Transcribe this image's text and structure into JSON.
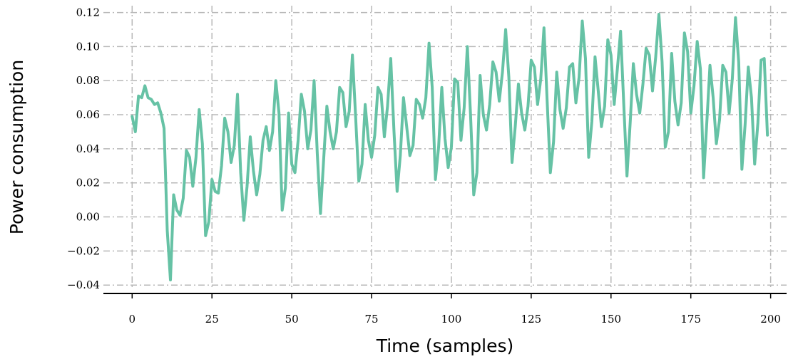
{
  "chart_data": {
    "type": "line",
    "xlabel": "Time (samples)",
    "ylabel": "Power consumption",
    "xlim": [
      -9,
      205
    ],
    "ylim": [
      -0.042,
      0.124
    ],
    "grid": true,
    "line_color": "#66c2a5",
    "grid_color": "#b8b8b8",
    "xticks": [
      0,
      25,
      50,
      75,
      100,
      125,
      150,
      175,
      200
    ],
    "xtick_labels": [
      "0",
      "25",
      "50",
      "75",
      "100",
      "125",
      "150",
      "175",
      "200"
    ],
    "yticks": [
      -0.04,
      -0.02,
      0.0,
      0.02,
      0.04,
      0.06,
      0.08,
      0.1,
      0.12
    ],
    "ytick_labels": [
      "−0.04",
      "−0.02",
      "0.00",
      "0.02",
      "0.04",
      "0.06",
      "0.08",
      "0.10",
      "0.12"
    ],
    "series": [
      {
        "x_start": 0,
        "x_step": 1,
        "values": [
          0.059,
          0.05,
          0.071,
          0.07,
          0.077,
          0.07,
          0.069,
          0.066,
          0.067,
          0.061,
          0.052,
          -0.008,
          -0.037,
          0.013,
          0.004,
          0.001,
          0.011,
          0.039,
          0.035,
          0.018,
          0.035,
          0.063,
          0.043,
          -0.011,
          -0.003,
          0.022,
          0.015,
          0.014,
          0.03,
          0.058,
          0.05,
          0.032,
          0.042,
          0.072,
          0.026,
          -0.002,
          0.018,
          0.047,
          0.027,
          0.013,
          0.025,
          0.045,
          0.053,
          0.039,
          0.05,
          0.08,
          0.061,
          0.004,
          0.017,
          0.061,
          0.031,
          0.026,
          0.045,
          0.072,
          0.062,
          0.04,
          0.051,
          0.08,
          0.037,
          0.002,
          0.034,
          0.065,
          0.05,
          0.04,
          0.05,
          0.076,
          0.073,
          0.053,
          0.062,
          0.095,
          0.059,
          0.021,
          0.031,
          0.066,
          0.045,
          0.035,
          0.048,
          0.076,
          0.072,
          0.047,
          0.065,
          0.093,
          0.051,
          0.015,
          0.036,
          0.07,
          0.053,
          0.036,
          0.042,
          0.069,
          0.066,
          0.058,
          0.07,
          0.102,
          0.076,
          0.022,
          0.041,
          0.076,
          0.046,
          0.029,
          0.041,
          0.081,
          0.079,
          0.045,
          0.064,
          0.1,
          0.06,
          0.013,
          0.026,
          0.083,
          0.06,
          0.051,
          0.066,
          0.091,
          0.085,
          0.068,
          0.085,
          0.11,
          0.082,
          0.032,
          0.053,
          0.078,
          0.061,
          0.051,
          0.065,
          0.092,
          0.088,
          0.066,
          0.081,
          0.111,
          0.068,
          0.026,
          0.044,
          0.085,
          0.063,
          0.052,
          0.064,
          0.088,
          0.09,
          0.067,
          0.082,
          0.115,
          0.093,
          0.035,
          0.056,
          0.094,
          0.074,
          0.053,
          0.065,
          0.104,
          0.095,
          0.066,
          0.087,
          0.109,
          0.066,
          0.024,
          0.055,
          0.09,
          0.072,
          0.061,
          0.078,
          0.099,
          0.095,
          0.074,
          0.094,
          0.119,
          0.091,
          0.041,
          0.05,
          0.096,
          0.068,
          0.054,
          0.067,
          0.108,
          0.097,
          0.061,
          0.077,
          0.103,
          0.087,
          0.023,
          0.055,
          0.089,
          0.07,
          0.043,
          0.057,
          0.089,
          0.085,
          0.061,
          0.081,
          0.117,
          0.091,
          0.028,
          0.054,
          0.088,
          0.07,
          0.031,
          0.055,
          0.092,
          0.093,
          0.048
        ]
      }
    ]
  }
}
